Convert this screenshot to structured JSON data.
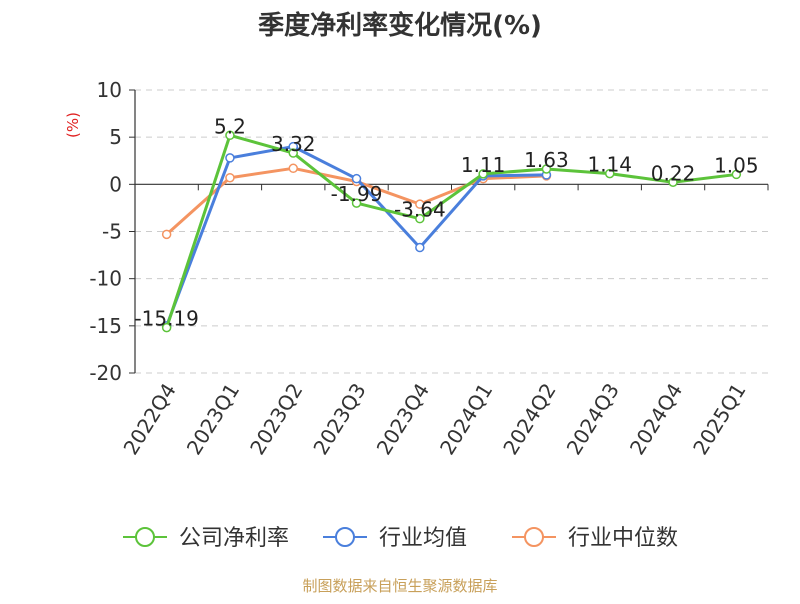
{
  "chart_data": {
    "type": "line",
    "title": "季度净利率变化情况(%)",
    "ylabel": "(%)",
    "xlabel": "",
    "ylim": [
      -20,
      10
    ],
    "yticks": [
      10,
      5,
      0,
      -5,
      -10,
      -15,
      -20
    ],
    "grid": true,
    "legend_position": "bottom",
    "categories": [
      "2022Q4",
      "2023Q1",
      "2023Q2",
      "2023Q3",
      "2023Q4",
      "2024Q1",
      "2024Q2",
      "2024Q3",
      "2024Q4",
      "2025Q1"
    ],
    "series": [
      {
        "name": "公司净利率",
        "color": "#5cc33a",
        "values": [
          -15.19,
          5.2,
          3.32,
          -1.99,
          -3.64,
          1.11,
          1.63,
          1.14,
          0.22,
          1.05
        ],
        "labels": [
          "-15.19",
          "5.2",
          "3.32",
          "-1.99",
          "-3.64",
          "1.11",
          "1.63",
          "1.14",
          "0.22",
          "1.05"
        ]
      },
      {
        "name": "行业均值",
        "color": "#4a7fdc",
        "values": [
          -15.0,
          2.8,
          4.0,
          0.6,
          -6.7,
          0.9,
          1.0,
          null,
          null,
          null
        ]
      },
      {
        "name": "行业中位数",
        "color": "#f49461",
        "values": [
          -5.3,
          0.7,
          1.7,
          0.3,
          -2.1,
          0.6,
          0.9,
          null,
          null,
          null
        ]
      }
    ]
  },
  "source_note": "制图数据来自恒生聚源数据库"
}
